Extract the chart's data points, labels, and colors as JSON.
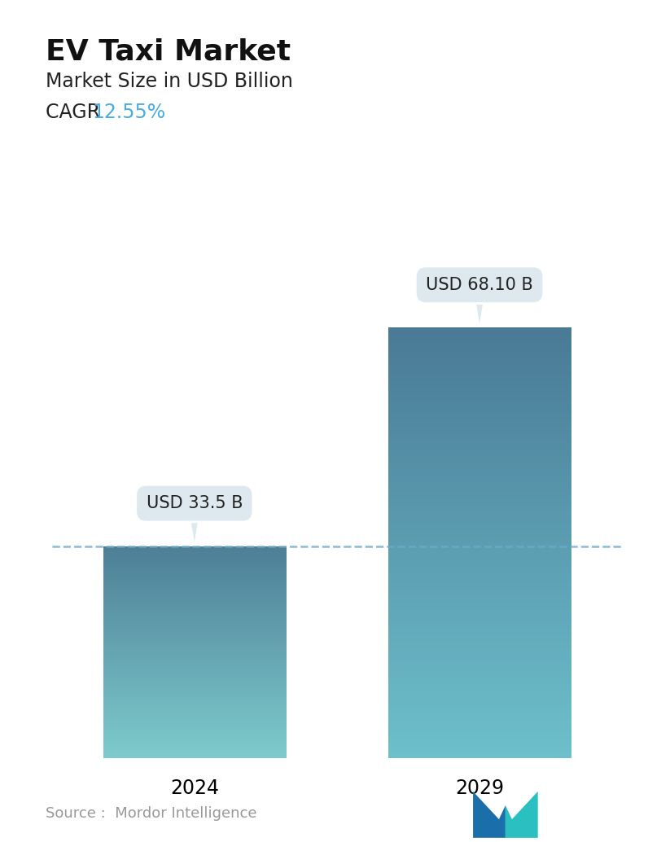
{
  "title": "EV Taxi Market",
  "subtitle": "Market Size in USD Billion",
  "cagr_label": "CAGR  ",
  "cagr_value": "12.55%",
  "cagr_color": "#4AACE0",
  "categories": [
    "2024",
    "2029"
  ],
  "values": [
    33.5,
    68.1
  ],
  "annotations": [
    "USD 33.5 B",
    "USD 68.10 B"
  ],
  "bar_color_top_0": "#4E7F97",
  "bar_color_bottom_0": "#7DCBCC",
  "bar_color_top_1": "#4A7A96",
  "bar_color_bottom_1": "#6DC0CC",
  "dashed_line_y": 33.5,
  "dashed_line_color": "#6AABCC",
  "source_text": "Source :  Mordor Intelligence",
  "background_color": "#FFFFFF",
  "annotation_box_color": "#DDE8EF",
  "ylim": [
    0,
    80
  ],
  "title_fontsize": 26,
  "subtitle_fontsize": 17,
  "cagr_fontsize": 17,
  "tick_fontsize": 17,
  "annotation_fontsize": 15,
  "source_fontsize": 13
}
